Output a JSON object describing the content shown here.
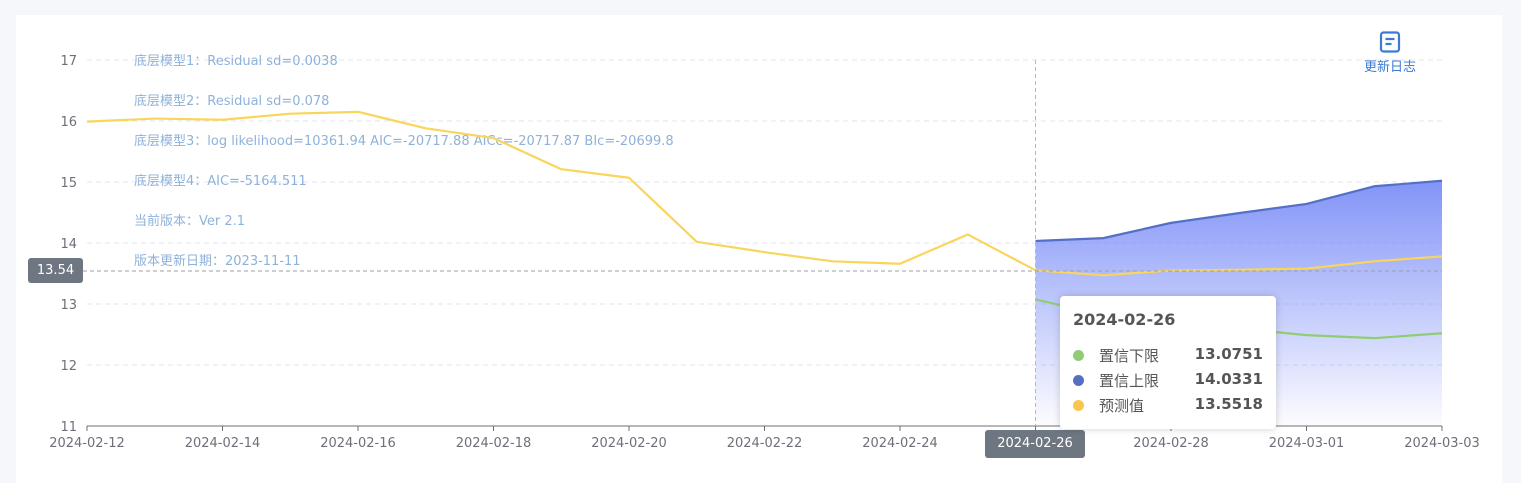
{
  "colors": {
    "forecast": "#f9d55b",
    "upper": "#5470c6",
    "lower": "#91cc75",
    "band_top": "#7b8ef7",
    "info": "#8fb2d9",
    "accent": "#3a7bd5"
  },
  "toolbar": {
    "log_label": "更新日志",
    "log_icon": "document-icon"
  },
  "info_lines": [
    "底层模型1：Residual sd=0.0038",
    "底层模型2：Residual sd=0.078",
    "底层模型3：log likelihood=10361.94 AIC=-20717.88 AICc=-20717.87 BIc=-20699.8",
    "底层模型4：AIC=-5164.511",
    "当前版本：Ver 2.1",
    "版本更新日期：2023-11-11"
  ],
  "axis_pointer": {
    "y_label": "13.54",
    "x_label": "2024-02-26"
  },
  "tooltip": {
    "title": "2024-02-26",
    "rows": [
      {
        "name": "置信下限",
        "value": "13.0751",
        "color": "#91cc75"
      },
      {
        "name": "置信上限",
        "value": "14.0331",
        "color": "#5470c6"
      },
      {
        "name": "预测值",
        "value": "13.5518",
        "color": "#f9c74f"
      }
    ]
  },
  "chart_data": {
    "type": "line",
    "x": [
      "2024-02-12",
      "2024-02-13",
      "2024-02-14",
      "2024-02-15",
      "2024-02-16",
      "2024-02-17",
      "2024-02-18",
      "2024-02-19",
      "2024-02-20",
      "2024-02-21",
      "2024-02-22",
      "2024-02-23",
      "2024-02-24",
      "2024-02-25",
      "2024-02-26",
      "2024-02-27",
      "2024-02-28",
      "2024-02-29",
      "2024-03-01",
      "2024-03-02",
      "2024-03-03"
    ],
    "x_tick_labels": [
      "2024-02-12",
      "2024-02-14",
      "2024-02-16",
      "2024-02-18",
      "2024-02-20",
      "2024-02-22",
      "2024-02-24",
      "2024-02-26",
      "2024-02-28",
      "2024-03-01",
      "2024-03-03"
    ],
    "ylim": [
      11,
      17
    ],
    "y_ticks": [
      11,
      12,
      13,
      14,
      15,
      16,
      17
    ],
    "grid": true,
    "series": [
      {
        "values": [
          15.99,
          16.04,
          16.02,
          16.12,
          16.15,
          15.88,
          15.72,
          15.21,
          15.07,
          14.02,
          13.85,
          13.7,
          13.66,
          14.14,
          13.5518,
          13.47,
          13.55,
          13.56,
          13.58,
          13.7,
          13.78
        ]
      },
      {
        "values": [
          null,
          null,
          null,
          null,
          null,
          null,
          null,
          null,
          null,
          null,
          null,
          null,
          null,
          null,
          14.0331,
          14.08,
          14.33,
          14.49,
          14.64,
          14.93,
          15.02
        ]
      },
      {
        "values": [
          null,
          null,
          null,
          null,
          null,
          null,
          null,
          null,
          null,
          null,
          null,
          null,
          null,
          null,
          13.0751,
          12.82,
          12.66,
          12.6,
          12.49,
          12.44,
          12.52
        ]
      }
    ],
    "xlabel": "",
    "ylabel": ""
  }
}
